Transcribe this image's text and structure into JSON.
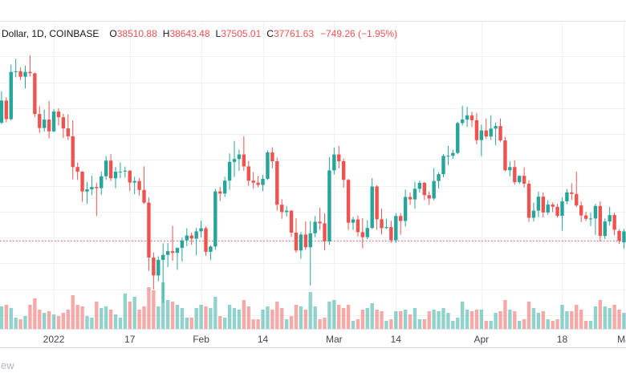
{
  "legend": {
    "symbol_text": "Dollar, 1D, COINBASE",
    "o_label": "O",
    "o_value": "38510.88",
    "h_label": "H",
    "h_value": "38643.48",
    "l_label": "L",
    "l_value": "37505.01",
    "c_label": "C",
    "c_value": "37761.63",
    "change_text": "−749.26 (−1.95%)"
  },
  "watermark_text": "ew",
  "colors": {
    "up": "#26a69a",
    "down": "#ef5350",
    "vol_up": "rgba(38,166,154,0.5)",
    "vol_down": "rgba(239,83,80,0.5)",
    "grid": "#f0f2f6",
    "close_line": "#ef5350",
    "axis_text": "#434651",
    "legend_text": "#131722",
    "border": "#e0e3eb"
  },
  "chart_data": {
    "type": "candlestick",
    "title": "Dollar, 1D, COINBASE",
    "legend_ohlc": {
      "open": 38510.88,
      "high": 38643.48,
      "low": 37505.01,
      "close": 37761.63,
      "change": -749.26,
      "change_pct": -1.95
    },
    "price_line": 37761.63,
    "grid_prices": [
      32000,
      34000,
      36000,
      38000,
      40000,
      42000,
      44000,
      46000,
      48000,
      50000,
      52000
    ],
    "time_labels": [
      {
        "text": "2022",
        "day": 12
      },
      {
        "text": "17",
        "day": 28
      },
      {
        "text": "Feb",
        "day": 43
      },
      {
        "text": "14",
        "day": 56
      },
      {
        "text": "Mar",
        "day": 71
      },
      {
        "text": "14",
        "day": 84
      },
      {
        "text": "Apr",
        "day": 102
      },
      {
        "text": "18",
        "day": 119
      },
      {
        "text": "Ma",
        "day": 132
      }
    ],
    "candles": [
      [
        46700,
        47520,
        45580,
        46880
      ],
      [
        46880,
        49300,
        46750,
        48590
      ],
      [
        48590,
        48850,
        46900,
        47150
      ],
      [
        47150,
        51375,
        47050,
        50800
      ],
      [
        50800,
        51810,
        50380,
        50850
      ],
      [
        50850,
        51150,
        50180,
        50430
      ],
      [
        50430,
        51280,
        49520,
        50800
      ],
      [
        50800,
        52088,
        50450,
        50700
      ],
      [
        50700,
        50750,
        47320,
        47550
      ],
      [
        47550,
        48150,
        46100,
        46470
      ],
      [
        46470,
        47900,
        46200,
        47120
      ],
      [
        47120,
        48550,
        45650,
        46210
      ],
      [
        46210,
        47920,
        46150,
        47740
      ],
      [
        47740,
        47990,
        46650,
        47300
      ],
      [
        47300,
        47570,
        45700,
        46440
      ],
      [
        46440,
        47520,
        45540,
        45830
      ],
      [
        45830,
        47070,
        42500,
        43450
      ],
      [
        43450,
        43800,
        42450,
        43090
      ],
      [
        43090,
        43140,
        40770,
        41560
      ],
      [
        41560,
        42300,
        40610,
        41730
      ],
      [
        41730,
        42790,
        41270,
        41910
      ],
      [
        41910,
        42250,
        39650,
        41820
      ],
      [
        41820,
        43100,
        41300,
        42740
      ],
      [
        42740,
        44300,
        42450,
        43950
      ],
      [
        43950,
        44450,
        42360,
        42580
      ],
      [
        42580,
        43450,
        41810,
        43090
      ],
      [
        43090,
        43800,
        42590,
        43100
      ],
      [
        43100,
        43480,
        42640,
        43170
      ],
      [
        43170,
        43210,
        41600,
        42250
      ],
      [
        42250,
        42700,
        41350,
        42370
      ],
      [
        42370,
        42600,
        41250,
        41680
      ],
      [
        41680,
        43500,
        40600,
        40700
      ],
      [
        40700,
        41100,
        35440,
        36450
      ],
      [
        36450,
        36850,
        34000,
        35070
      ],
      [
        35070,
        36550,
        34620,
        36280
      ],
      [
        36280,
        37550,
        32950,
        36660
      ],
      [
        36660,
        37580,
        35710,
        36950
      ],
      [
        36950,
        38900,
        36210,
        36820
      ],
      [
        36820,
        37230,
        35510,
        37200
      ],
      [
        37200,
        38000,
        36150,
        37780
      ],
      [
        37780,
        38720,
        37330,
        38160
      ],
      [
        38160,
        38380,
        37430,
        37920
      ],
      [
        37920,
        38750,
        36630,
        38480
      ],
      [
        38480,
        39300,
        38010,
        38720
      ],
      [
        38720,
        38860,
        36590,
        36900
      ],
      [
        36900,
        37380,
        36250,
        37310
      ],
      [
        37310,
        41760,
        37050,
        41570
      ],
      [
        41570,
        41920,
        40830,
        41400
      ],
      [
        41400,
        42700,
        41130,
        42400
      ],
      [
        42400,
        44500,
        41680,
        43850
      ],
      [
        43850,
        45470,
        42680,
        44070
      ],
      [
        44070,
        44800,
        43160,
        44420
      ],
      [
        44420,
        45820,
        43170,
        43500
      ],
      [
        43500,
        43920,
        41990,
        42400
      ],
      [
        42400,
        43050,
        41780,
        42240
      ],
      [
        42240,
        42750,
        41880,
        42070
      ],
      [
        42070,
        42840,
        41580,
        42540
      ],
      [
        42540,
        44750,
        42450,
        44580
      ],
      [
        44580,
        44980,
        43360,
        43900
      ],
      [
        43900,
        44180,
        40080,
        40540
      ],
      [
        40540,
        40960,
        39450,
        39970
      ],
      [
        39970,
        40440,
        39640,
        40080
      ],
      [
        40080,
        40120,
        38060,
        38380
      ],
      [
        38380,
        39490,
        36830,
        37000
      ],
      [
        37000,
        38430,
        36350,
        38230
      ],
      [
        38230,
        39250,
        37060,
        37250
      ],
      [
        37250,
        39280,
        34300,
        38330
      ],
      [
        38330,
        39670,
        38030,
        39220
      ],
      [
        39220,
        40300,
        38600,
        39100
      ],
      [
        39100,
        39870,
        37020,
        37700
      ],
      [
        37700,
        44220,
        37450,
        43190
      ],
      [
        43190,
        44950,
        42880,
        44420
      ],
      [
        44420,
        45080,
        43340,
        43900
      ],
      [
        43900,
        44100,
        41850,
        42460
      ],
      [
        42460,
        42530,
        38600,
        39150
      ],
      [
        39150,
        39610,
        38580,
        39400
      ],
      [
        39400,
        39700,
        38090,
        38420
      ],
      [
        38420,
        39500,
        37170,
        38030
      ],
      [
        38030,
        39350,
        37870,
        38740
      ],
      [
        38740,
        42594,
        38660,
        41950
      ],
      [
        41950,
        42040,
        38590,
        39420
      ],
      [
        39420,
        40230,
        38230,
        38730
      ],
      [
        38730,
        39450,
        38660,
        38810
      ],
      [
        38810,
        39300,
        37600,
        37790
      ],
      [
        37790,
        39900,
        37590,
        39670
      ],
      [
        39670,
        39890,
        38210,
        39280
      ],
      [
        39280,
        41700,
        38850,
        41140
      ],
      [
        41140,
        41480,
        40520,
        40950
      ],
      [
        40950,
        42320,
        40220,
        41770
      ],
      [
        41770,
        42400,
        41480,
        42230
      ],
      [
        42230,
        42300,
        40910,
        41280
      ],
      [
        41280,
        41550,
        40530,
        41020
      ],
      [
        41020,
        43360,
        40890,
        42370
      ],
      [
        42370,
        43030,
        41780,
        42900
      ],
      [
        42900,
        44450,
        42660,
        44310
      ],
      [
        44310,
        45090,
        43600,
        44320
      ],
      [
        44320,
        44800,
        44080,
        44540
      ],
      [
        44540,
        46950,
        44430,
        46850
      ],
      [
        46850,
        48190,
        46660,
        47120
      ],
      [
        47120,
        48120,
        46560,
        47450
      ],
      [
        47450,
        47720,
        46540,
        47070
      ],
      [
        47070,
        47630,
        45220,
        45530
      ],
      [
        45530,
        46740,
        44290,
        46280
      ],
      [
        46280,
        47210,
        45620,
        45810
      ],
      [
        45810,
        47450,
        45540,
        46420
      ],
      [
        46420,
        46890,
        45150,
        46620
      ],
      [
        46620,
        47200,
        45400,
        45510
      ],
      [
        45510,
        45780,
        43120,
        43200
      ],
      [
        43200,
        43900,
        42730,
        43450
      ],
      [
        43450,
        43970,
        42110,
        42280
      ],
      [
        42280,
        42800,
        42130,
        42770
      ],
      [
        42770,
        43420,
        41870,
        42160
      ],
      [
        42160,
        42420,
        39200,
        39530
      ],
      [
        39530,
        40700,
        39250,
        40080
      ],
      [
        40080,
        41560,
        39580,
        41160
      ],
      [
        41160,
        41500,
        39550,
        39940
      ],
      [
        39940,
        40870,
        39770,
        40550
      ],
      [
        40550,
        40700,
        39960,
        40380
      ],
      [
        40380,
        40600,
        39550,
        39680
      ],
      [
        39680,
        41100,
        38540,
        40800
      ],
      [
        40800,
        41760,
        40570,
        41490
      ],
      [
        41490,
        42200,
        40910,
        41370
      ],
      [
        41370,
        43100,
        40350,
        40480
      ],
      [
        40480,
        40780,
        39200,
        39710
      ],
      [
        39710,
        39980,
        39280,
        39450
      ],
      [
        39450,
        39940,
        38880,
        39470
      ],
      [
        39470,
        40610,
        38200,
        40440
      ],
      [
        40440,
        40800,
        37700,
        38120
      ],
      [
        38120,
        39470,
        37880,
        39240
      ],
      [
        39240,
        40370,
        38930,
        39740
      ],
      [
        39740,
        39920,
        38180,
        38600
      ],
      [
        38510.88,
        38643.48,
        37505.01,
        37761.63
      ],
      [
        37630,
        38680,
        37150,
        38475
      ]
    ],
    "volumes": [
      25,
      28,
      30,
      26,
      14,
      12,
      16,
      30,
      38,
      24,
      20,
      22,
      18,
      16,
      20,
      24,
      42,
      30,
      28,
      16,
      14,
      34,
      26,
      28,
      24,
      18,
      14,
      44,
      34,
      40,
      24,
      28,
      52,
      48,
      28,
      58,
      36,
      34,
      30,
      26,
      14,
      14,
      26,
      30,
      28,
      26,
      40,
      16,
      14,
      30,
      26,
      24,
      36,
      28,
      12,
      12,
      24,
      28,
      24,
      34,
      26,
      12,
      16,
      30,
      28,
      24,
      46,
      28,
      12,
      14,
      34,
      36,
      30,
      26,
      30,
      10,
      12,
      24,
      26,
      32,
      24,
      22,
      10,
      12,
      22,
      22,
      24,
      18,
      26,
      12,
      12,
      22,
      24,
      22,
      26,
      20,
      10,
      14,
      34,
      24,
      22,
      24,
      24,
      10,
      10,
      20,
      22,
      36,
      24,
      22,
      10,
      12,
      34,
      26,
      20,
      22,
      12,
      10,
      12,
      30,
      22,
      22,
      30,
      24,
      10,
      10,
      28,
      36,
      28,
      26,
      30,
      24,
      20
    ]
  }
}
